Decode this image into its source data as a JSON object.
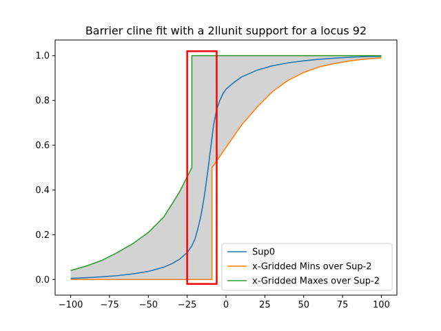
{
  "chart_data": {
    "type": "line",
    "title": "Barrier cline fit with a 2llunit support for a locus 92",
    "xlabel": "",
    "ylabel": "",
    "xlim": [
      -110,
      110
    ],
    "ylim": [
      -0.07,
      1.07
    ],
    "x_ticks": [
      -100,
      -75,
      -50,
      -25,
      0,
      25,
      50,
      75,
      100
    ],
    "x_tick_labels": [
      "−100",
      "−75",
      "−50",
      "−25",
      "0",
      "25",
      "50",
      "75",
      "100"
    ],
    "y_ticks": [
      0.0,
      0.2,
      0.4,
      0.6,
      0.8,
      1.0
    ],
    "y_tick_labels": [
      "0.0",
      "0.2",
      "0.4",
      "0.6",
      "0.8",
      "1.0"
    ],
    "grid": false,
    "legend_position": "lower-right",
    "shaded_band": {
      "between": [
        "x-Gridded Mins over Sup-2",
        "x-Gridded Maxes over Sup-2"
      ],
      "color": "#d3d3d3"
    },
    "highlight_box": {
      "x_range": [
        -25,
        -6
      ],
      "y_range": [
        -0.02,
        1.02
      ],
      "color": "#ff0000"
    },
    "series": [
      {
        "name": "Sup0",
        "color": "#1f77b4",
        "x": [
          -100,
          -90,
          -80,
          -70,
          -60,
          -50,
          -40,
          -35,
          -30,
          -25,
          -22,
          -20,
          -18,
          -16,
          -14,
          -12,
          -10,
          -8,
          -6,
          -4,
          -2,
          0,
          5,
          10,
          20,
          30,
          40,
          50,
          60,
          70,
          80,
          90,
          100
        ],
        "y": [
          0.005,
          0.008,
          0.012,
          0.017,
          0.025,
          0.036,
          0.055,
          0.07,
          0.09,
          0.12,
          0.15,
          0.18,
          0.23,
          0.29,
          0.37,
          0.47,
          0.58,
          0.69,
          0.76,
          0.8,
          0.83,
          0.85,
          0.88,
          0.905,
          0.935,
          0.955,
          0.968,
          0.977,
          0.984,
          0.989,
          0.993,
          0.996,
          0.997
        ]
      },
      {
        "name": "x-Gridded Mins over Sup-2",
        "color": "#ff7f0e",
        "x": [
          -100,
          -9,
          -9,
          -5,
          0,
          5,
          10,
          20,
          30,
          40,
          50,
          60,
          70,
          80,
          90,
          100
        ],
        "y": [
          0.0,
          0.0,
          0.5,
          0.54,
          0.59,
          0.64,
          0.69,
          0.77,
          0.84,
          0.89,
          0.925,
          0.95,
          0.965,
          0.977,
          0.985,
          0.99
        ]
      },
      {
        "name": "x-Gridded Maxes over Sup-2",
        "color": "#2ca02c",
        "x": [
          -100,
          -90,
          -80,
          -70,
          -60,
          -50,
          -40,
          -30,
          -22,
          -22,
          100
        ],
        "y": [
          0.04,
          0.06,
          0.085,
          0.12,
          0.16,
          0.21,
          0.28,
          0.39,
          0.5,
          1.0,
          1.0
        ]
      }
    ]
  }
}
